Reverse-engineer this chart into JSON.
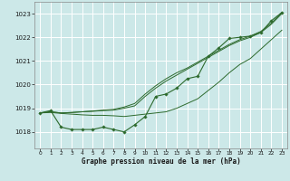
{
  "title": "Graphe pression niveau de la mer (hPa)",
  "background_color": "#cce8e8",
  "grid_color": "#ffffff",
  "line_color": "#2d6a2d",
  "xlim": [
    -0.5,
    23.5
  ],
  "ylim": [
    1017.3,
    1023.5
  ],
  "yticks": [
    1018,
    1019,
    1020,
    1021,
    1022,
    1023
  ],
  "xticks": [
    0,
    1,
    2,
    3,
    4,
    5,
    6,
    7,
    8,
    9,
    10,
    11,
    12,
    13,
    14,
    15,
    16,
    17,
    18,
    19,
    20,
    21,
    22,
    23
  ],
  "smooth_line1": [
    1018.8,
    1018.85,
    1018.8,
    1018.82,
    1018.85,
    1018.87,
    1018.9,
    1018.92,
    1019.0,
    1019.1,
    1019.5,
    1019.85,
    1020.15,
    1020.4,
    1020.65,
    1020.9,
    1021.15,
    1021.4,
    1021.65,
    1021.85,
    1022.0,
    1022.2,
    1022.55,
    1023.0
  ],
  "smooth_line2": [
    1018.8,
    1018.85,
    1018.8,
    1018.82,
    1018.85,
    1018.88,
    1018.92,
    1018.95,
    1019.05,
    1019.2,
    1019.6,
    1019.95,
    1020.25,
    1020.5,
    1020.7,
    1020.95,
    1021.2,
    1021.45,
    1021.7,
    1021.9,
    1022.05,
    1022.25,
    1022.6,
    1023.05
  ],
  "data_line": [
    1018.8,
    1018.9,
    1018.2,
    1018.1,
    1018.1,
    1018.1,
    1018.2,
    1018.1,
    1018.0,
    1018.3,
    1018.65,
    1019.5,
    1019.6,
    1019.85,
    1020.25,
    1020.35,
    1021.2,
    1021.55,
    1021.95,
    1022.0,
    1022.05,
    1022.2,
    1022.7,
    1023.05
  ],
  "trend_line": [
    1018.8,
    1018.82,
    1018.78,
    1018.75,
    1018.72,
    1018.7,
    1018.7,
    1018.68,
    1018.65,
    1018.7,
    1018.75,
    1018.8,
    1018.85,
    1019.0,
    1019.2,
    1019.4,
    1019.75,
    1020.1,
    1020.5,
    1020.85,
    1021.1,
    1021.5,
    1021.9,
    1022.3
  ]
}
